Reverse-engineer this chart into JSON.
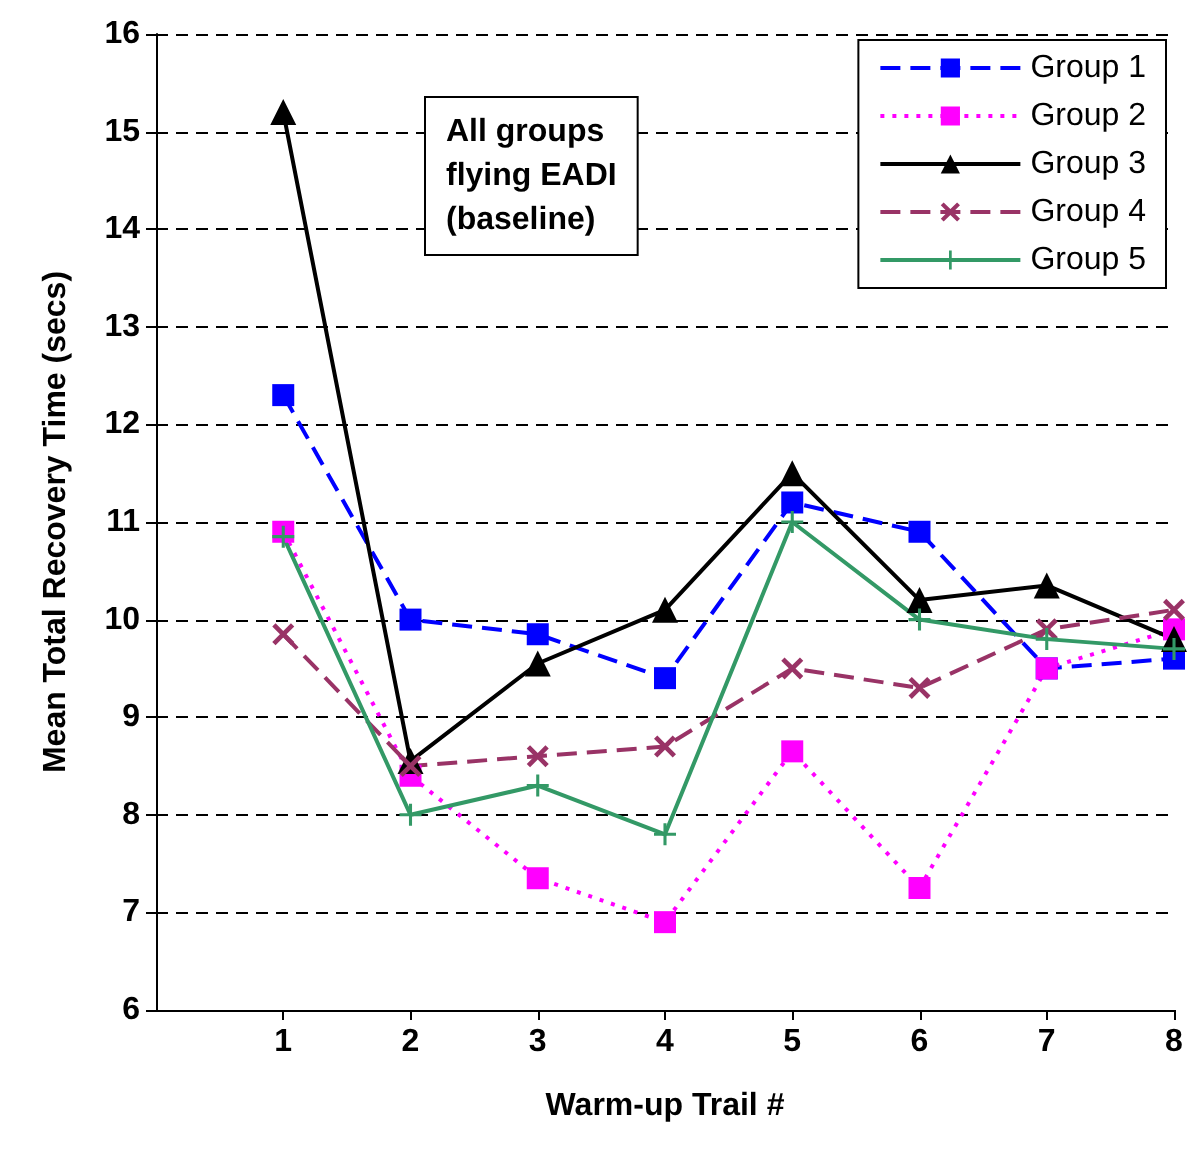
{
  "chart_data": {
    "type": "line",
    "xlabel": "Warm-up Trail #",
    "ylabel": "Mean Total Recovery Time (secs)",
    "annotations": [
      "All groups\nflying EADI\n(baseline)"
    ],
    "x": [
      1,
      2,
      3,
      4,
      5,
      6,
      7,
      8
    ],
    "xlim": [
      0,
      8
    ],
    "xticks": [
      1,
      2,
      3,
      4,
      5,
      6,
      7,
      8
    ],
    "ylim": [
      6,
      16
    ],
    "yticks": [
      6,
      7,
      8,
      9,
      10,
      11,
      12,
      13,
      14,
      15,
      16
    ],
    "grid": "y",
    "legend": "top right",
    "series": [
      {
        "name": "Group 1",
        "color": "#0000ff",
        "marker": "square",
        "line_style": "dashed",
        "values": [
          12.3,
          10.0,
          9.85,
          9.4,
          11.2,
          10.9,
          9.5,
          9.6
        ]
      },
      {
        "name": "Group 2",
        "color": "#ff00ff",
        "marker": "square",
        "line_style": "dotted",
        "values": [
          10.9,
          8.4,
          7.35,
          6.9,
          8.65,
          7.25,
          9.5,
          9.9
        ]
      },
      {
        "name": "Group 3",
        "color": "#000000",
        "marker": "triangle",
        "line_style": "solid",
        "values": [
          15.2,
          8.55,
          9.55,
          10.1,
          11.5,
          10.2,
          10.35,
          9.8
        ]
      },
      {
        "name": "Group 4",
        "color": "#993366",
        "marker": "cross",
        "line_style": "dashed",
        "values": [
          9.85,
          8.5,
          8.6,
          8.7,
          9.5,
          9.3,
          9.9,
          10.1
        ]
      },
      {
        "name": "Group 5",
        "color": "#339966",
        "marker": "plus",
        "line_style": "solid",
        "values": [
          10.85,
          8.0,
          8.3,
          7.8,
          11.0,
          10.0,
          9.8,
          9.7
        ]
      }
    ]
  }
}
